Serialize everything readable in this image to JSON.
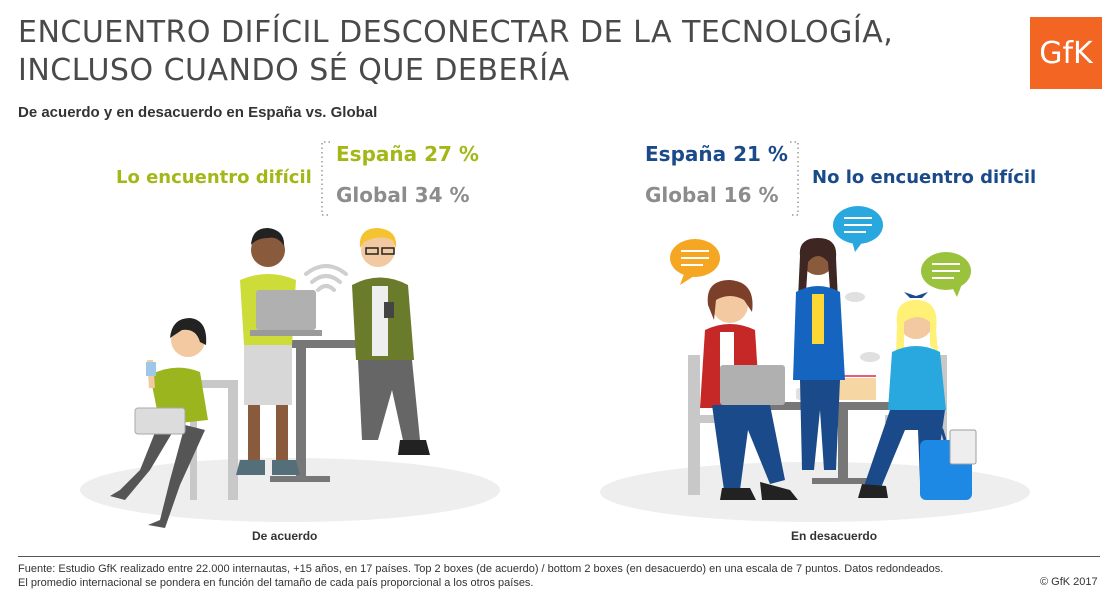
{
  "title_line1": "ENCUENTRO DIFÍCIL DESCONECTAR DE LA TECNOLOGÍA,",
  "title_line2": "INCLUSO CUANDO SÉ QUE DEBERÍA",
  "subtitle": "De acuerdo y en desacuerdo en España vs. Global",
  "logo_text": "GfK",
  "colors": {
    "agree": "#a3b817",
    "disagree": "#1b4a8a",
    "global": "#8c8c8c",
    "brand": "#f26522"
  },
  "chart_data": {
    "type": "table",
    "groups": [
      {
        "label": "Lo encuentro difícil",
        "caption": "De acuerdo",
        "rows": [
          {
            "name": "España",
            "value": 27,
            "display": "27 %"
          },
          {
            "name": "Global",
            "value": 34,
            "display": "34 %"
          }
        ]
      },
      {
        "label": "No lo encuentro difícil",
        "caption": "En desacuerdo",
        "rows": [
          {
            "name": "España",
            "value": 21,
            "display": "21 %"
          },
          {
            "name": "Global",
            "value": 16,
            "display": "16 %"
          }
        ]
      }
    ]
  },
  "footnote_line1": "Fuente: Estudio GfK realizado entre 22.000 internautas, +15 años, en 17 países. Top 2 boxes (de acuerdo) / bottom 2 boxes (en desacuerdo) en una escala de 7 puntos. Datos redondeados.",
  "footnote_line2": "El promedio internacional se pondera en función del tamaño de cada país proporcional a los otros países.",
  "copyright": "© GfK 2017"
}
